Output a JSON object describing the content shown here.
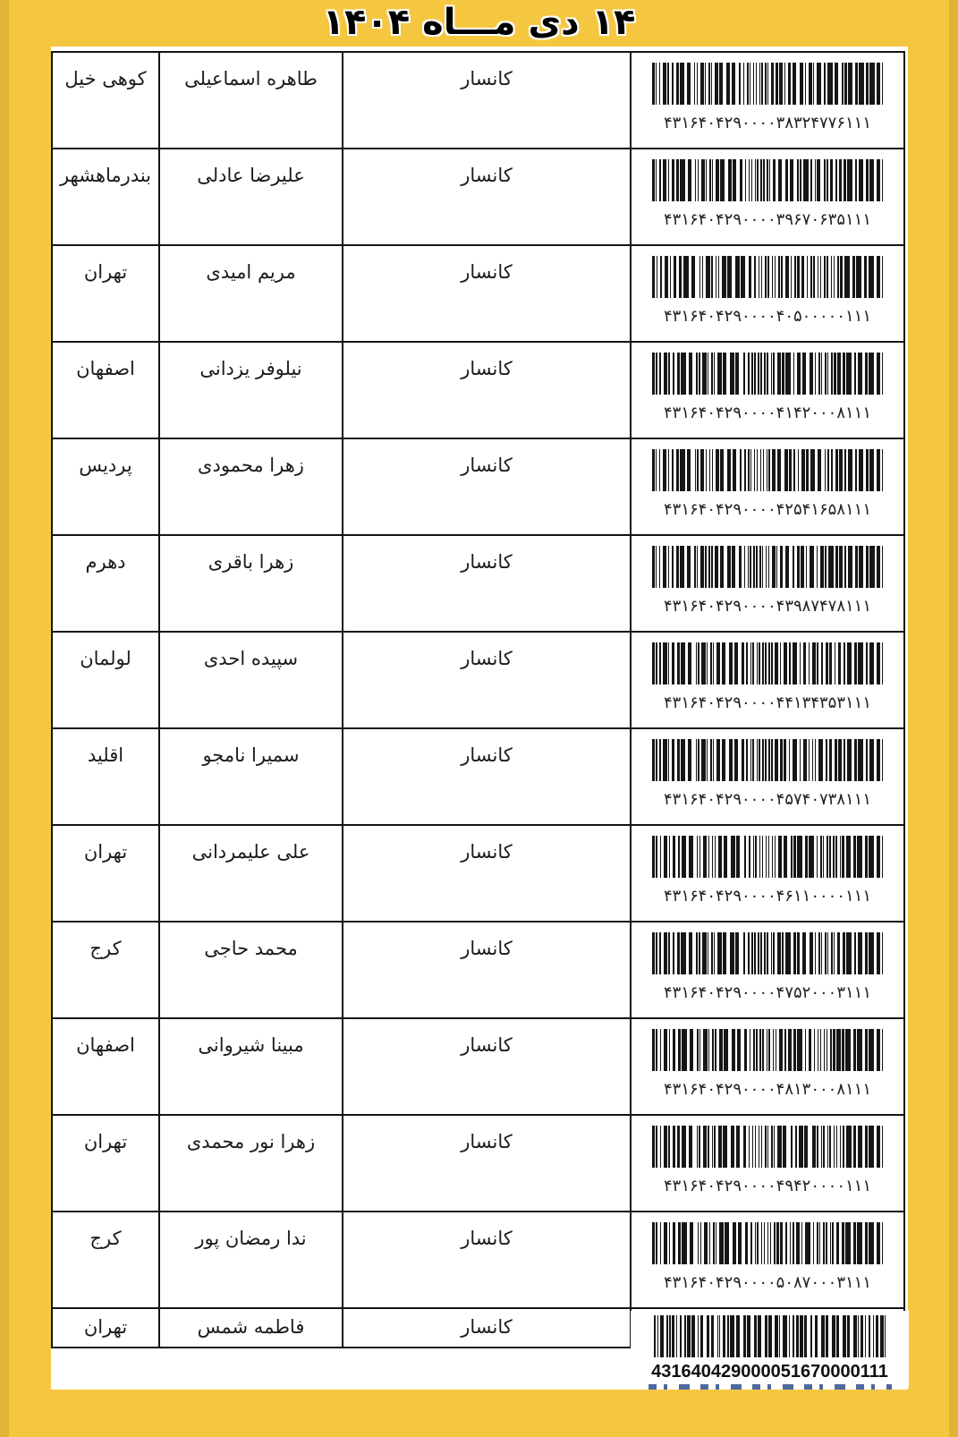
{
  "header": {
    "title": "۱۴ دی مـــاه ۱۴۰۴"
  },
  "colors": {
    "page_background": "#f5c741",
    "table_border": "#141414",
    "barcode_bars": "#161616",
    "clipped_caption_blue": "#31508e"
  },
  "rows": [
    {
      "city": "کوهی خیل",
      "name": "طاهره اسماعیلی",
      "org": "کانسار",
      "code": "۴۳۱۶۴۰۴۲۹۰۰۰۰۳۸۳۲۴۷۷۶۱۱۱"
    },
    {
      "city": "بندرماهشهر",
      "name": "علیرضا عادلی",
      "org": "کانسار",
      "code": "۴۳۱۶۴۰۴۲۹۰۰۰۰۳۹۶۷۰۶۳۵۱۱۱"
    },
    {
      "city": "تهران",
      "name": "مریم امیدی",
      "org": "کانسار",
      "code": "۴۳۱۶۴۰۴۲۹۰۰۰۰۴۰۵۰۰۰۰۰۱۱۱"
    },
    {
      "city": "اصفهان",
      "name": "نیلوفر یزدانی",
      "org": "کانسار",
      "code": "۴۳۱۶۴۰۴۲۹۰۰۰۰۴۱۴۲۰۰۰۸۱۱۱"
    },
    {
      "city": "پردیس",
      "name": "زهرا محمودی",
      "org": "کانسار",
      "code": "۴۳۱۶۴۰۴۲۹۰۰۰۰۴۲۵۴۱۶۵۸۱۱۱"
    },
    {
      "city": "دهرم",
      "name": "زهرا باقری",
      "org": "کانسار",
      "code": "۴۳۱۶۴۰۴۲۹۰۰۰۰۴۳۹۸۷۴۷۸۱۱۱"
    },
    {
      "city": "لولمان",
      "name": "سپیده احدی",
      "org": "کانسار",
      "code": "۴۳۱۶۴۰۴۲۹۰۰۰۰۴۴۱۳۴۳۵۳۱۱۱"
    },
    {
      "city": "اقلید",
      "name": "سمیرا نامجو",
      "org": "کانسار",
      "code": "۴۳۱۶۴۰۴۲۹۰۰۰۰۴۵۷۴۰۷۳۸۱۱۱"
    },
    {
      "city": "تهران",
      "name": "علی علیمردانی",
      "org": "کانسار",
      "code": "۴۳۱۶۴۰۴۲۹۰۰۰۰۴۶۱۱۰۰۰۰۱۱۱"
    },
    {
      "city": "کرج",
      "name": "محمد حاجی",
      "org": "کانسار",
      "code": "۴۳۱۶۴۰۴۲۹۰۰۰۰۴۷۵۲۰۰۰۳۱۱۱"
    },
    {
      "city": "اصفهان",
      "name": "مبینا شیروانی",
      "org": "کانسار",
      "code": "۴۳۱۶۴۰۴۲۹۰۰۰۰۴۸۱۳۰۰۰۸۱۱۱"
    },
    {
      "city": "تهران",
      "name": "زهرا نور محمدی",
      "org": "کانسار",
      "code": "۴۳۱۶۴۰۴۲۹۰۰۰۰۴۹۴۲۰۰۰۰۱۱۱"
    },
    {
      "city": "کرج",
      "name": "ندا رمضان پور",
      "org": "کانسار",
      "code": "۴۳۱۶۴۰۴۲۹۰۰۰۰۵۰۸۷۰۰۰۳۱۱۱"
    },
    {
      "city": "تهران",
      "name": "فاطمه شمس",
      "org": "کانسار",
      "code": "431640429000051670000111"
    }
  ]
}
